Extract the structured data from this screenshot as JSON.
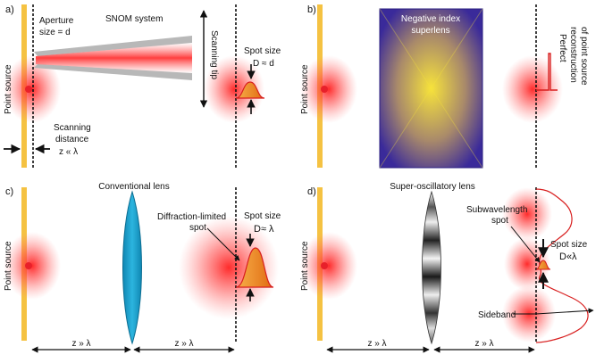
{
  "panel_a": {
    "letter": "a)",
    "aperture_line1": "Aperture",
    "aperture_line2": "size = d",
    "title": "SNOM system",
    "point_source": "Point source",
    "scanning_tip": "Scanning tip",
    "spot_line1": "Spot size",
    "spot_line2": "D ≈ d",
    "distance_line1": "Scanning",
    "distance_line2": "distance",
    "distance_line3": "z « λ"
  },
  "panel_b": {
    "letter": "b)",
    "lens_line1": "Negative index",
    "lens_line2": "superlens",
    "point_source": "Point source",
    "recon_line1": "Perfect",
    "recon_line2": "reconstruction",
    "recon_line3": "of point source"
  },
  "panel_c": {
    "letter": "c)",
    "title": "Conventional lens",
    "point_source": "Point source",
    "diffraction_line1": "Diffraction-limited",
    "diffraction_line2": "spot",
    "spot_line1": "Spot size",
    "spot_line2": "D≈ λ",
    "dist_left": "z » λ",
    "dist_right": "z » λ"
  },
  "panel_d": {
    "letter": "d)",
    "title": "Super-oscillatory lens",
    "point_source": "Point source",
    "subwave_line1": "Subwavelength",
    "subwave_line2": "spot",
    "spot_line1": "Spot size",
    "spot_line2": "D«λ",
    "sideband": "Sideband",
    "dist_left": "z » λ",
    "dist_right": "z » λ"
  },
  "colors": {
    "source_bar": "#f5c242",
    "source_point": "#e8202a",
    "glow": "#ff3030",
    "spot_fill": "#f08a1c",
    "lens_blue": "#1aa3cf",
    "superlens_outer": "#3a2a9a",
    "superlens_center": "#f7e33b",
    "intensity_curve": "#d81e1e"
  }
}
